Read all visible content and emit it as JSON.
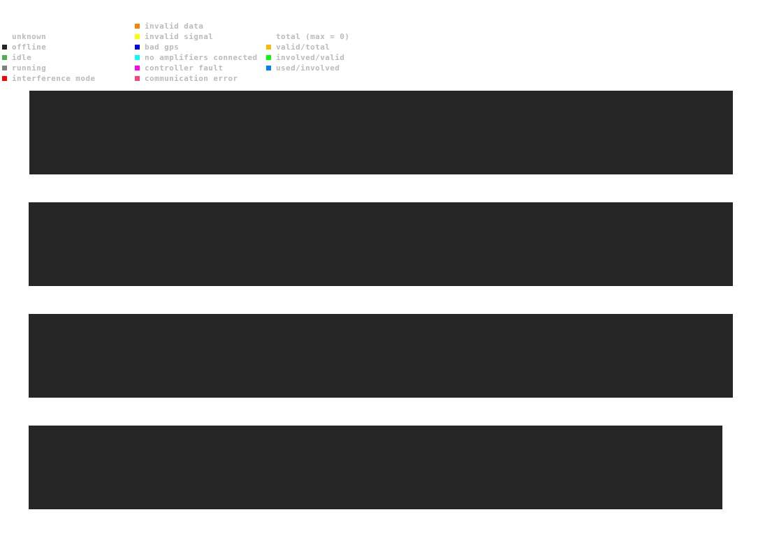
{
  "legend": {
    "status": [
      {
        "label": "",
        "color": null
      },
      {
        "label": "unknown",
        "color": "#ffffff"
      },
      {
        "label": "offline",
        "color": "#262626"
      },
      {
        "label": "idle",
        "color": "#4caf50"
      },
      {
        "label": "running",
        "color": "#808080"
      },
      {
        "label": "interference mode",
        "color": "#ff0000"
      }
    ],
    "errors": [
      {
        "label": "invalid data",
        "color": "#ff8000"
      },
      {
        "label": "invalid signal",
        "color": "#ffff00"
      },
      {
        "label": "bad gps",
        "color": "#0000ff"
      },
      {
        "label": "no amplifiers connected",
        "color": "#00ffff"
      },
      {
        "label": "controller fault",
        "color": "#ff00ff"
      },
      {
        "label": "communication error",
        "color": "#ff4080"
      }
    ],
    "ratios": [
      {
        "label": "",
        "color": null
      },
      {
        "label": "total (max = 0)",
        "color": null
      },
      {
        "label": "valid/total",
        "color": "#ffb800"
      },
      {
        "label": "involved/valid",
        "color": "#00ff00"
      },
      {
        "label": "used/involved",
        "color": "#0080ff"
      }
    ]
  },
  "panel_color": "#262626"
}
